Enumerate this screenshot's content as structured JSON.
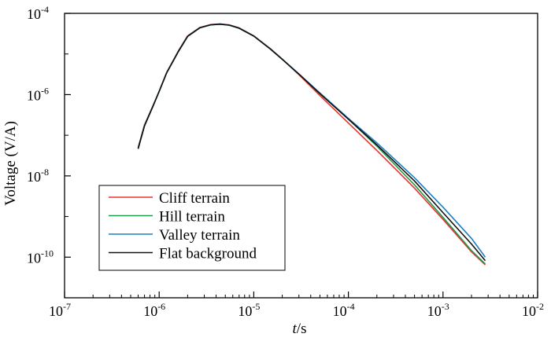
{
  "chart_data": {
    "type": "line",
    "xlabel_italic": "t",
    "xlabel_rest": "/s",
    "ylabel": "Voltage (V/A)",
    "xscale": "log",
    "yscale": "log",
    "xlim": [
      1e-07,
      0.01
    ],
    "ylim": [
      1e-11,
      0.0001
    ],
    "x_ticks": [
      {
        "value": 1e-07,
        "base": "10",
        "exp": "-7"
      },
      {
        "value": 1e-06,
        "base": "10",
        "exp": "-6"
      },
      {
        "value": 1e-05,
        "base": "10",
        "exp": "-5"
      },
      {
        "value": 0.0001,
        "base": "10",
        "exp": "-4"
      },
      {
        "value": 0.001,
        "base": "10",
        "exp": "-3"
      },
      {
        "value": 0.01,
        "base": "10",
        "exp": "-2"
      }
    ],
    "y_ticks": [
      {
        "value": 0.0001,
        "base": "10",
        "exp": "-4"
      },
      {
        "value": 1e-06,
        "base": "10",
        "exp": "-6"
      },
      {
        "value": 1e-08,
        "base": "10",
        "exp": "-8"
      },
      {
        "value": 1e-10,
        "base": "10",
        "exp": "-10"
      }
    ],
    "legend_position": "bottom-left",
    "grid": false,
    "series": [
      {
        "name": "Cliff terrain",
        "color": "#e8312f",
        "x": [
          6e-07,
          7e-07,
          8.5e-07,
          1e-06,
          1.2e-06,
          1.6e-06,
          2e-06,
          2.7e-06,
          3.5e-06,
          4.4e-06,
          5.5e-06,
          7e-06,
          1e-05,
          1.5e-05,
          2e-05,
          3e-05,
          5e-05,
          0.0001,
          0.0002,
          0.0005,
          0.001,
          0.002,
          0.0028
        ],
        "y": [
          5e-08,
          1.8e-07,
          5e-07,
          1.2e-06,
          3.5e-06,
          1.2e-05,
          2.8e-05,
          4.5e-05,
          5.3e-05,
          5.5e-05,
          5.2e-05,
          4.4e-05,
          2.8e-05,
          1.35e-05,
          7.5e-06,
          3.1e-06,
          9.5e-07,
          2e-07,
          4.2e-08,
          5e-09,
          8.5e-10,
          1.35e-10,
          6.5e-11
        ]
      },
      {
        "name": "Hill terrain",
        "color": "#1f9a4a",
        "x": [
          6e-07,
          7e-07,
          8.5e-07,
          1e-06,
          1.2e-06,
          1.6e-06,
          2e-06,
          2.7e-06,
          3.5e-06,
          4.4e-06,
          5.5e-06,
          7e-06,
          1e-05,
          1.5e-05,
          2e-05,
          3e-05,
          5e-05,
          0.0001,
          0.0002,
          0.0005,
          0.001,
          0.002,
          0.0028
        ],
        "y": [
          4.6e-08,
          1.7e-07,
          4.8e-07,
          1.2e-06,
          3.4e-06,
          1.15e-05,
          2.7e-05,
          4.4e-05,
          5.2e-05,
          5.4e-05,
          5.1e-05,
          4.3e-05,
          2.75e-05,
          1.32e-05,
          7.4e-06,
          3.2e-06,
          1.05e-06,
          2.5e-07,
          5.4e-08,
          6e-09,
          9.5e-10,
          1.45e-10,
          6.8e-11
        ]
      },
      {
        "name": "Valley terrain",
        "color": "#1a7fc4",
        "x": [
          6e-07,
          7e-07,
          8.5e-07,
          1e-06,
          1.2e-06,
          1.6e-06,
          2e-06,
          2.7e-06,
          3.5e-06,
          4.4e-06,
          5.5e-06,
          7e-06,
          1e-05,
          1.5e-05,
          2e-05,
          3e-05,
          5e-05,
          0.0001,
          0.0002,
          0.0005,
          0.001,
          0.002,
          0.0028
        ],
        "y": [
          4.8e-08,
          1.75e-07,
          4.9e-07,
          1.2e-06,
          3.45e-06,
          1.18e-05,
          2.75e-05,
          4.45e-05,
          5.25e-05,
          5.45e-05,
          5.15e-05,
          4.35e-05,
          2.78e-05,
          1.33e-05,
          7.45e-06,
          3.25e-06,
          1.1e-06,
          2.6e-07,
          6.5e-08,
          9e-09,
          1.7e-09,
          2.9e-10,
          1e-10
        ]
      },
      {
        "name": "Flat background",
        "color": "#111111",
        "x": [
          6e-07,
          7e-07,
          8.5e-07,
          1e-06,
          1.2e-06,
          1.6e-06,
          2e-06,
          2.7e-06,
          3.5e-06,
          4.4e-06,
          5.5e-06,
          7e-06,
          1e-05,
          1.5e-05,
          2e-05,
          3e-05,
          5e-05,
          0.0001,
          0.0002,
          0.0005,
          0.001,
          0.002,
          0.0028
        ],
        "y": [
          4.7e-08,
          1.72e-07,
          4.85e-07,
          1.2e-06,
          3.42e-06,
          1.16e-05,
          2.72e-05,
          4.42e-05,
          5.22e-05,
          5.42e-05,
          5.12e-05,
          4.32e-05,
          2.76e-05,
          1.32e-05,
          7.4e-06,
          3.2e-06,
          1.06e-06,
          2.5e-07,
          5.8e-08,
          7.5e-09,
          1.25e-09,
          2.1e-10,
          8.2e-11
        ]
      }
    ]
  }
}
